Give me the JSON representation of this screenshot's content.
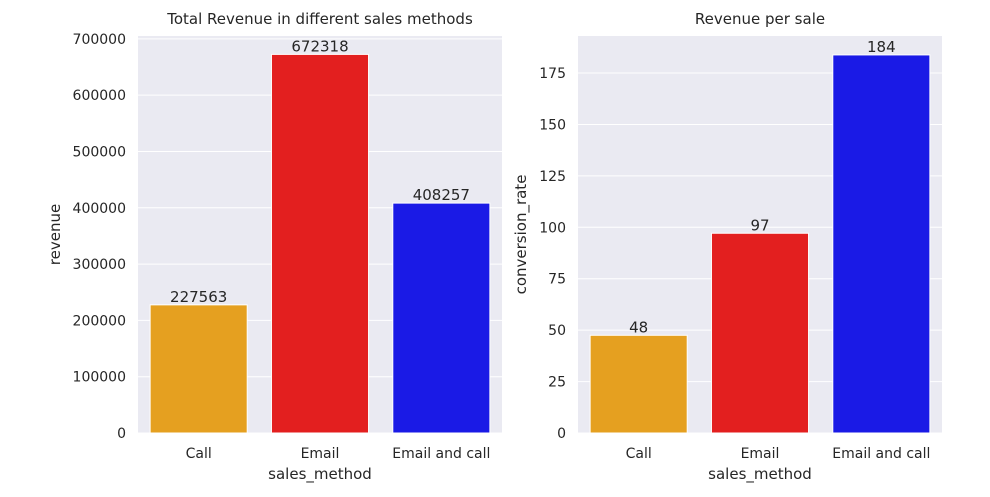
{
  "chart_data": [
    {
      "type": "bar",
      "title": "Total Revenue in different sales methods",
      "xlabel": "sales_method",
      "ylabel": "revenue",
      "categories": [
        "Call",
        "Email",
        "Email and call"
      ],
      "values": [
        227563,
        672318,
        408257
      ],
      "data_labels": [
        "227563",
        "672318",
        "408257"
      ],
      "colors": [
        "#e5a020",
        "#e31f1f",
        "#1a1ae6"
      ],
      "ylim": [
        0,
        705000
      ],
      "yticks": [
        0,
        100000,
        200000,
        300000,
        400000,
        500000,
        600000,
        700000
      ],
      "ytick_labels": [
        "0",
        "100000",
        "200000",
        "300000",
        "400000",
        "500000",
        "600000",
        "700000"
      ],
      "grid": true,
      "background": "#eaeaf2"
    },
    {
      "type": "bar",
      "title": "Revenue per sale",
      "xlabel": "sales_method",
      "ylabel": "conversion_rate",
      "categories": [
        "Call",
        "Email",
        "Email and call"
      ],
      "values": [
        47.5,
        97.1,
        183.8
      ],
      "data_labels": [
        "48",
        "97",
        "184"
      ],
      "colors": [
        "#e5a020",
        "#e31f1f",
        "#1a1ae6"
      ],
      "ylim": [
        0,
        193
      ],
      "yticks": [
        0,
        25,
        50,
        75,
        100,
        125,
        150,
        175
      ],
      "ytick_labels": [
        "0",
        "25",
        "50",
        "75",
        "100",
        "125",
        "150",
        "175"
      ],
      "grid": true,
      "background": "#eaeaf2"
    }
  ]
}
